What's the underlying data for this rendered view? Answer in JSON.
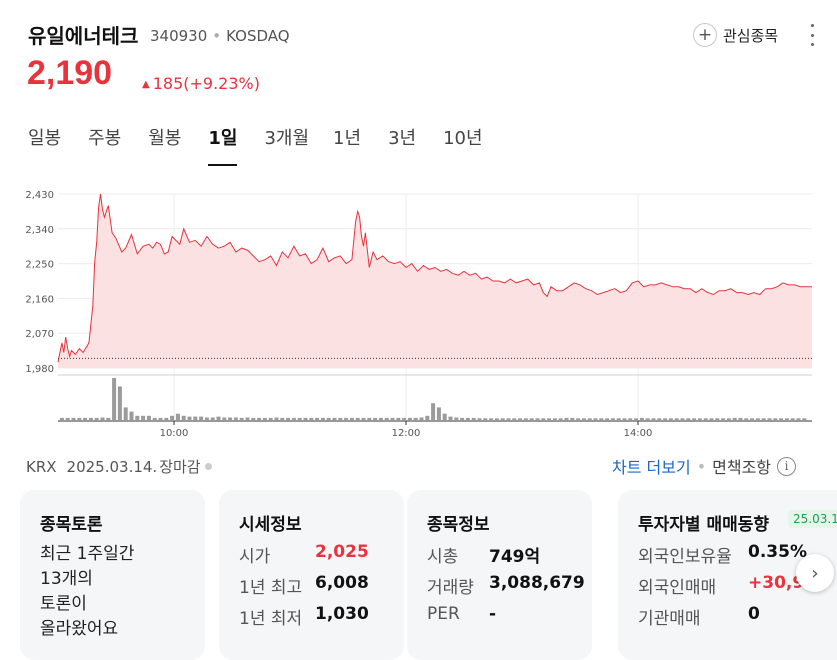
{
  "header": {
    "stock_name": "유일에너테크",
    "stock_code": "340930",
    "market": "KOSDAQ",
    "watch_label": "관심종목",
    "price": "2,190",
    "change_arrow": "▲",
    "change_text": "185(+9.23%)"
  },
  "tabs": [
    {
      "label": "일봉",
      "active": false
    },
    {
      "label": "주봉",
      "active": false
    },
    {
      "label": "월봉",
      "active": false
    },
    {
      "label": "1일",
      "active": true
    },
    {
      "label": "3개월",
      "active": false
    },
    {
      "label": "1년",
      "active": false
    },
    {
      "label": "3년",
      "active": false
    },
    {
      "label": "10년",
      "active": false
    }
  ],
  "chart_data": {
    "type": "area",
    "y_tick_labels": [
      "2,430",
      "2,340",
      "2,250",
      "2,160",
      "2,070",
      "1,980"
    ],
    "y_ticks": [
      2430,
      2340,
      2250,
      2160,
      2070,
      1980
    ],
    "ylim": [
      1980,
      2430
    ],
    "x_tick_labels": [
      "10:00",
      "12:00",
      "14:00"
    ],
    "x_ticks_minutes": [
      600,
      720,
      840
    ],
    "xlim_minutes": [
      540,
      930
    ],
    "reference_price": 2005,
    "colors": {
      "line": "#e8323c",
      "fill": "#fbe1e2",
      "volume": "#9b9b9b"
    },
    "grid": true,
    "price_series": {
      "x_minutes": [
        540,
        542,
        543,
        544,
        545,
        546,
        547,
        549,
        551,
        553,
        556,
        558,
        559,
        560,
        561,
        562,
        563,
        564,
        566,
        568,
        570,
        573,
        575,
        578,
        581,
        584,
        587,
        589,
        591,
        593,
        595,
        597,
        599,
        601,
        603,
        605,
        608,
        611,
        614,
        617,
        620,
        623,
        626,
        629,
        632,
        635,
        638,
        641,
        644,
        647,
        650,
        653,
        656,
        659,
        662,
        665,
        668,
        671,
        674,
        677,
        680,
        683,
        686,
        689,
        692,
        694,
        695,
        696,
        697,
        698,
        699,
        701,
        703,
        705,
        708,
        711,
        714,
        717,
        720,
        723,
        726,
        729,
        732,
        735,
        738,
        741,
        744,
        747,
        750,
        753,
        756,
        759,
        762,
        765,
        768,
        771,
        774,
        777,
        780,
        783,
        786,
        789,
        791,
        793,
        795,
        798,
        801,
        804,
        807,
        810,
        813,
        816,
        819,
        822,
        825,
        828,
        831,
        834,
        837,
        840,
        843,
        846,
        849,
        852,
        855,
        858,
        861,
        864,
        867,
        870,
        873,
        876,
        879,
        882,
        885,
        888,
        891,
        894,
        897,
        900,
        903,
        906,
        909,
        912,
        915,
        918,
        921,
        924,
        927,
        930
      ],
      "y_values": [
        1995,
        2045,
        2020,
        2060,
        2030,
        2010,
        2025,
        2015,
        2030,
        2020,
        2045,
        2140,
        2255,
        2305,
        2395,
        2430,
        2390,
        2370,
        2400,
        2330,
        2315,
        2280,
        2290,
        2325,
        2275,
        2295,
        2300,
        2290,
        2305,
        2300,
        2275,
        2280,
        2320,
        2310,
        2300,
        2340,
        2305,
        2310,
        2295,
        2320,
        2300,
        2290,
        2295,
        2305,
        2280,
        2290,
        2285,
        2270,
        2255,
        2260,
        2270,
        2245,
        2280,
        2265,
        2295,
        2270,
        2275,
        2250,
        2260,
        2290,
        2255,
        2265,
        2270,
        2250,
        2260,
        2360,
        2385,
        2370,
        2320,
        2295,
        2330,
        2240,
        2280,
        2260,
        2270,
        2255,
        2250,
        2255,
        2240,
        2250,
        2230,
        2245,
        2235,
        2240,
        2230,
        2235,
        2225,
        2220,
        2230,
        2220,
        2225,
        2210,
        2215,
        2205,
        2205,
        2200,
        2210,
        2200,
        2205,
        2210,
        2195,
        2200,
        2175,
        2165,
        2190,
        2180,
        2180,
        2190,
        2200,
        2195,
        2185,
        2180,
        2170,
        2175,
        2180,
        2185,
        2175,
        2180,
        2200,
        2205,
        2190,
        2195,
        2195,
        2200,
        2195,
        2190,
        2190,
        2185,
        2185,
        2175,
        2185,
        2175,
        2170,
        2180,
        2180,
        2185,
        2175,
        2175,
        2170,
        2175,
        2170,
        2185,
        2185,
        2190,
        2200,
        2195,
        2195,
        2190,
        2190,
        2190
      ]
    },
    "volume_series": {
      "x_minutes": [
        542,
        545,
        548,
        551,
        554,
        557,
        560,
        563,
        566,
        569,
        572,
        575,
        578,
        581,
        584,
        587,
        590,
        593,
        596,
        599,
        602,
        605,
        608,
        611,
        614,
        617,
        620,
        623,
        626,
        629,
        632,
        635,
        638,
        641,
        644,
        647,
        650,
        653,
        656,
        659,
        662,
        665,
        668,
        671,
        674,
        677,
        680,
        683,
        686,
        689,
        692,
        695,
        698,
        701,
        704,
        707,
        710,
        713,
        716,
        719,
        722,
        725,
        728,
        731,
        734,
        737,
        740,
        743,
        746,
        749,
        752,
        755,
        758,
        761,
        764,
        767,
        770,
        773,
        776,
        779,
        782,
        785,
        788,
        791,
        794,
        797,
        800,
        803,
        806,
        809,
        812,
        815,
        818,
        821,
        824,
        827,
        830,
        833,
        836,
        839,
        842,
        845,
        848,
        851,
        854,
        857,
        860,
        863,
        866,
        869,
        872,
        875,
        878,
        881,
        884,
        887,
        890,
        893,
        896,
        899,
        902,
        905,
        908,
        911,
        914,
        917,
        920,
        923,
        926
      ],
      "relative_volume": [
        0.05,
        0.05,
        0.05,
        0.05,
        0.05,
        0.05,
        0.05,
        0.06,
        0.05,
        1.0,
        0.8,
        0.3,
        0.2,
        0.1,
        0.1,
        0.1,
        0.05,
        0.05,
        0.05,
        0.1,
        0.15,
        0.1,
        0.08,
        0.08,
        0.08,
        0.06,
        0.06,
        0.08,
        0.06,
        0.06,
        0.06,
        0.05,
        0.06,
        0.05,
        0.05,
        0.05,
        0.05,
        0.06,
        0.05,
        0.05,
        0.05,
        0.05,
        0.05,
        0.05,
        0.05,
        0.05,
        0.05,
        0.05,
        0.05,
        0.05,
        0.05,
        0.05,
        0.05,
        0.05,
        0.05,
        0.05,
        0.05,
        0.05,
        0.05,
        0.05,
        0.05,
        0.05,
        0.06,
        0.1,
        0.4,
        0.3,
        0.15,
        0.08,
        0.06,
        0.05,
        0.05,
        0.05,
        0.04,
        0.04,
        0.04,
        0.04,
        0.04,
        0.04,
        0.04,
        0.04,
        0.04,
        0.04,
        0.04,
        0.04,
        0.04,
        0.04,
        0.04,
        0.05,
        0.05,
        0.04,
        0.04,
        0.04,
        0.04,
        0.04,
        0.04,
        0.04,
        0.04,
        0.04,
        0.04,
        0.04,
        0.05,
        0.04,
        0.04,
        0.04,
        0.04,
        0.04,
        0.04,
        0.04,
        0.04,
        0.04,
        0.04,
        0.04,
        0.04,
        0.04,
        0.04,
        0.04,
        0.05,
        0.05,
        0.04,
        0.04,
        0.04,
        0.04,
        0.04,
        0.04,
        0.04,
        0.04,
        0.04,
        0.04,
        0.04
      ]
    }
  },
  "chart_footer": {
    "exchange": "KRX",
    "date": "2025.03.14.",
    "status": "장마감",
    "more_chart": "차트 더보기",
    "separator": "•",
    "disclaimer": "면책조항",
    "info_icon": "i"
  },
  "cards": {
    "discussion": {
      "title": "종목토론",
      "lines": [
        "최근 1주일간",
        "13개의",
        "토론이",
        "올라왔어요"
      ]
    },
    "quote": {
      "title": "시세정보",
      "rows": [
        {
          "label": "시가",
          "value": "2,025"
        },
        {
          "label": "1년 최고",
          "value": "6,008"
        },
        {
          "label": "1년 최저",
          "value": "1,030"
        }
      ]
    },
    "info": {
      "title": "종목정보",
      "rows": [
        {
          "label": "시총",
          "value": "749억"
        },
        {
          "label": "거래량",
          "value": "3,088,679"
        },
        {
          "label": "PER",
          "value": "-"
        }
      ]
    },
    "investor": {
      "title": "투자자별 매매동향",
      "badge": "25.03.1",
      "rows": [
        {
          "label": "외국인보유율",
          "value": "0.35%"
        },
        {
          "label": "외국인매매",
          "value": "+30,9"
        },
        {
          "label": "기관매매",
          "value": "0"
        }
      ]
    }
  }
}
